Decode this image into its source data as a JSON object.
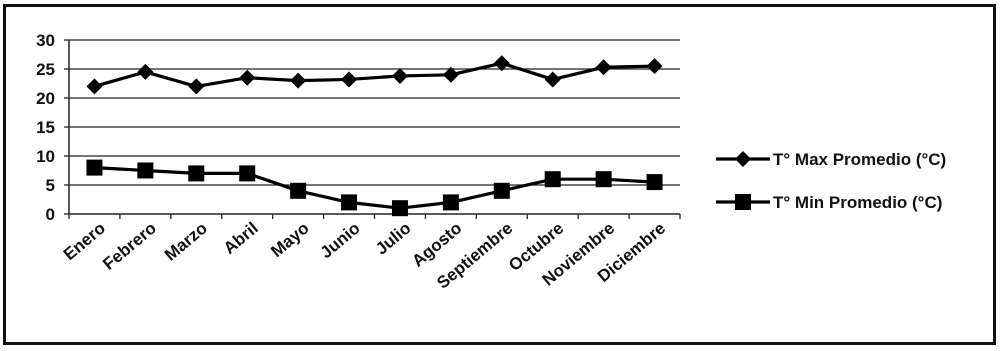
{
  "chart_data": {
    "type": "line",
    "title": "",
    "xlabel": "",
    "ylabel": "",
    "ylim": [
      0,
      30
    ],
    "yticks": [
      0,
      5,
      10,
      15,
      20,
      25,
      30
    ],
    "grid": true,
    "legend_position": "right",
    "categories": [
      "Enero",
      "Febrero",
      "Marzo",
      "Abril",
      "Mayo",
      "Junio",
      "Julio",
      "Agosto",
      "Septiembre",
      "Octubre",
      "Noviembre",
      "Diciembre"
    ],
    "series": [
      {
        "name": "T° Max Promedio (°C)",
        "marker": "diamond",
        "color": "#000000",
        "values": [
          22,
          24.5,
          22,
          23.5,
          23,
          23.2,
          23.8,
          24,
          26,
          23.2,
          25.3,
          25.5
        ]
      },
      {
        "name": "T°  Min Promedio (°C)",
        "marker": "square",
        "color": "#000000",
        "values": [
          8,
          7.5,
          7,
          7,
          4,
          2,
          1,
          2,
          4,
          6,
          6,
          5.5
        ]
      }
    ]
  }
}
